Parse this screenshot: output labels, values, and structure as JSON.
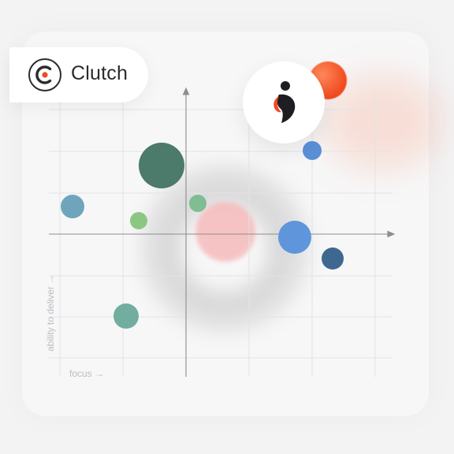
{
  "brand": {
    "name": "Clutch",
    "logo_icon": "clutch-logo-icon",
    "accent": "#ef4a23"
  },
  "hero": {
    "icon": "company-logo-icon"
  },
  "axes": {
    "x_label": "focus →",
    "y_label": "ability to deliver →"
  },
  "bubbles": [
    {
      "color": "#4c7a6b"
    },
    {
      "color": "#6fa5bc"
    },
    {
      "color": "#8cc782"
    },
    {
      "color": "#7fbd92"
    },
    {
      "color": "#5f96db"
    },
    {
      "color": "#5b90d8"
    },
    {
      "color": "#3f6890"
    },
    {
      "color": "#71ae9f"
    }
  ]
}
